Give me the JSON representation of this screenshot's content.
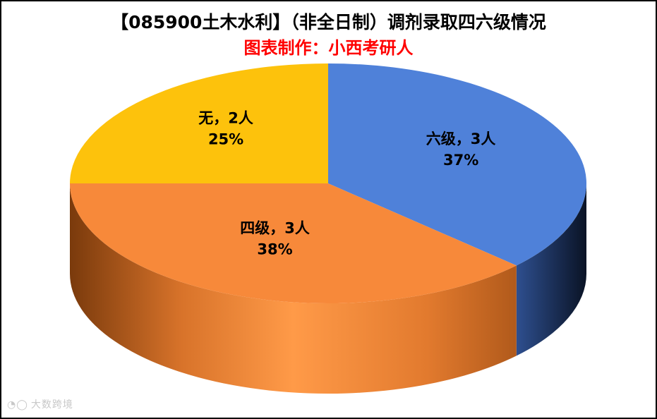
{
  "title": "【085900土木水利】（非全日制）调剂录取四六级情况",
  "subtitle": "图表制作：小西考研人",
  "watermark": {
    "logo_icon": "eye-logo-icon",
    "text": "大数跨境"
  },
  "chart_data": {
    "type": "pie",
    "title": "【085900土木水利】（非全日制）调剂录取四六级情况",
    "subtitle": "图表制作：小西考研人",
    "slices": [
      {
        "name": "六级",
        "count_label": "六级，3人",
        "value": 3,
        "percent": 37,
        "percent_label": "37%",
        "color": "#4f81d9"
      },
      {
        "name": "四级",
        "count_label": "四级，3人",
        "value": 3,
        "percent": 38,
        "percent_label": "38%",
        "color": "#f7893a"
      },
      {
        "name": "无",
        "count_label": "无，2人",
        "value": 2,
        "percent": 25,
        "percent_label": "25%",
        "color": "#fdc20c"
      }
    ],
    "legend": "none",
    "style": "3d-pie"
  }
}
